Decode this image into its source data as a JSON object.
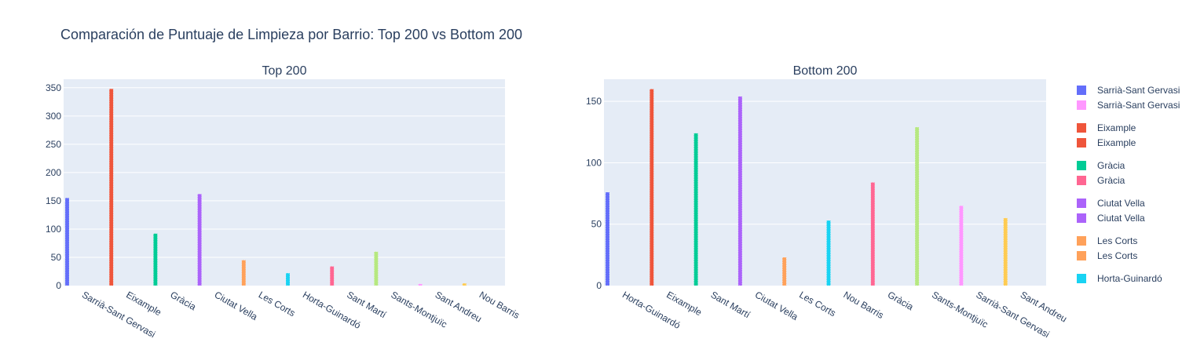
{
  "title": "Comparación de Puntuaje de Limpieza por Barrio: Top 200 vs Bottom 200",
  "colors": {
    "plot_bg": "#e5ecf6",
    "grid": "#ffffff",
    "text": "#2a3f5f"
  },
  "chart_data": [
    {
      "type": "bar",
      "title": "Top 200",
      "categories": [
        "Sarrià-Sant Gervasi",
        "Eixample",
        "Gràcia",
        "Ciutat Vella",
        "Les Corts",
        "Horta-Guinardó",
        "Sant Martí",
        "Sants-Montjuïc",
        "Sant Andreu",
        "Nou Barris"
      ],
      "values": [
        155,
        348,
        92,
        162,
        45,
        22,
        34,
        60,
        3,
        4
      ],
      "colors": [
        "#636efa",
        "#ef553b",
        "#00cc96",
        "#ab63fa",
        "#ffa15a",
        "#19d3f3",
        "#ff6692",
        "#b6e880",
        "#ff97ff",
        "#fecb52"
      ],
      "ylim": [
        0,
        365
      ],
      "yticks": [
        0,
        50,
        100,
        150,
        200,
        250,
        300,
        350
      ],
      "grid": true
    },
    {
      "type": "bar",
      "title": "Bottom 200",
      "categories": [
        "Horta-Guinardó",
        "Eixample",
        "Sant Martí",
        "Ciutat Vella",
        "Les Corts",
        "Nou Barris",
        "Gràcia",
        "Sants-Montjuïc",
        "Sarrià-Sant Gervasi",
        "Sant Andreu"
      ],
      "values": [
        76,
        160,
        124,
        154,
        23,
        53,
        84,
        129,
        65,
        55
      ],
      "colors": [
        "#636efa",
        "#ef553b",
        "#00cc96",
        "#ab63fa",
        "#ffa15a",
        "#19d3f3",
        "#ff6692",
        "#b6e880",
        "#ff97ff",
        "#fecb52"
      ],
      "ylim": [
        0,
        168
      ],
      "yticks": [
        0,
        50,
        100,
        150
      ],
      "grid": true
    }
  ],
  "legend": {
    "placement": "right",
    "groups": [
      [
        {
          "label": "Sarrià-Sant Gervasi",
          "color": "#636efa"
        },
        {
          "label": "Sarrià-Sant Gervasi",
          "color": "#ff97ff"
        }
      ],
      [
        {
          "label": "Eixample",
          "color": "#ef553b"
        },
        {
          "label": "Eixample",
          "color": "#ef553b"
        }
      ],
      [
        {
          "label": "Gràcia",
          "color": "#00cc96"
        },
        {
          "label": "Gràcia",
          "color": "#ff6692"
        }
      ],
      [
        {
          "label": "Ciutat Vella",
          "color": "#ab63fa"
        },
        {
          "label": "Ciutat Vella",
          "color": "#ab63fa"
        }
      ],
      [
        {
          "label": "Les Corts",
          "color": "#ffa15a"
        },
        {
          "label": "Les Corts",
          "color": "#ffa15a"
        }
      ],
      [
        {
          "label": "Horta-Guinardó",
          "color": "#19d3f3"
        }
      ]
    ]
  }
}
